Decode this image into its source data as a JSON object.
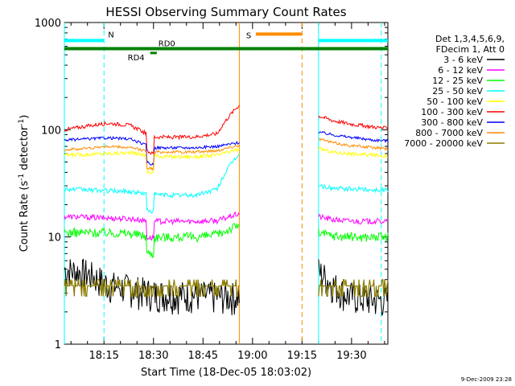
{
  "chart_data": {
    "type": "line",
    "title": "HESSI Observing Summary Count Rates",
    "xlabel": "Start Time (18-Dec-05 18:03:02)",
    "ylabel_main": "Count Rate (s",
    "ylabel_sup1": "-1",
    "ylabel_mid": " detector",
    "ylabel_sup2": "-1",
    "ylabel_end": ")",
    "yscale": "log",
    "ylim": [
      1,
      1000
    ],
    "xlim_min": [
      0,
      98
    ],
    "yticks": [
      {
        "value": 1,
        "label": "1"
      },
      {
        "value": 10,
        "label": "10"
      },
      {
        "value": 100,
        "label": "100"
      },
      {
        "value": 1000,
        "label": "1000"
      }
    ],
    "xticks": [
      {
        "min": 12,
        "label": "18:15"
      },
      {
        "min": 27,
        "label": "18:30"
      },
      {
        "min": 42,
        "label": "18:45"
      },
      {
        "min": 57,
        "label": "19:00"
      },
      {
        "min": 72,
        "label": "19:15"
      },
      {
        "min": 87,
        "label": "19:30"
      }
    ],
    "legend": {
      "header": [
        "Det 1,3,4,5,6,9,",
        "FDecim 1, Att 0"
      ],
      "placement": "right"
    },
    "segments": [
      [
        0,
        53
      ],
      [
        77,
        98
      ]
    ],
    "series": [
      {
        "name": "3 - 6 keV",
        "color": "#000000",
        "pre": [
          5.0,
          4.6,
          3.6,
          3.3,
          3.0,
          2.9,
          2.9,
          2.8,
          2.8
        ],
        "post": [
          4.8,
          3.6,
          2.9,
          2.7,
          2.6,
          2.6
        ]
      },
      {
        "name": "6 - 12 keV",
        "color": "#ff00ff",
        "pre": [
          15.5,
          15.3,
          15.0,
          14.8,
          14.0,
          14.0,
          14.0,
          14.2,
          16.5
        ],
        "post": [
          15.5,
          14.5,
          14.2,
          14.0,
          14.0,
          14.0
        ]
      },
      {
        "name": "12 - 25 keV",
        "color": "#00ff00",
        "pre": [
          11.0,
          11.0,
          11.0,
          10.8,
          10.0,
          10.0,
          10.0,
          10.5,
          13.0
        ],
        "post": [
          11.0,
          10.3,
          10.1,
          10.0,
          10.0,
          10.0
        ]
      },
      {
        "name": "25 - 50 keV",
        "color": "#00ffff",
        "pre": [
          28.0,
          27.5,
          27.0,
          26.5,
          25.0,
          24.5,
          24.5,
          28.0,
          60.0
        ],
        "post": [
          30.0,
          28.5,
          28.0,
          28.0,
          27.5,
          27.5
        ]
      },
      {
        "name": "50 - 100 keV",
        "color": "#ffff00",
        "pre": [
          58.0,
          59.0,
          60.0,
          61.0,
          57.0,
          56.0,
          56.0,
          58.0,
          66.0
        ],
        "post": [
          67.0,
          62.0,
          60.0,
          59.0,
          58.0,
          57.0
        ]
      },
      {
        "name": "100 - 300 keV",
        "color": "#ff0000",
        "pre": [
          100.0,
          108.0,
          115.0,
          110.0,
          86.0,
          85.0,
          86.0,
          92.0,
          170.0
        ],
        "post": [
          135.0,
          122.0,
          115.0,
          110.0,
          106.0,
          103.0
        ]
      },
      {
        "name": "300 - 800 keV",
        "color": "#0000ff",
        "pre": [
          80.0,
          82.0,
          84.0,
          82.0,
          68.0,
          68.0,
          68.0,
          70.0,
          76.0
        ],
        "post": [
          95.0,
          90.0,
          86.0,
          83.0,
          80.0,
          79.0
        ]
      },
      {
        "name": "800 - 7000 keV",
        "color": "#ff8c00",
        "pre": [
          65.0,
          67.0,
          70.0,
          68.0,
          62.0,
          62.0,
          62.0,
          64.0,
          72.0
        ],
        "post": [
          82.0,
          76.0,
          72.0,
          70.0,
          68.0,
          66.0
        ]
      },
      {
        "name": "7000 - 20000 keV",
        "color": "#8b7d00",
        "pre": [
          3.5,
          3.5,
          3.5,
          3.5,
          3.5,
          3.5,
          3.5,
          3.5,
          3.5
        ],
        "post": [
          3.5,
          3.5,
          3.5,
          3.5,
          3.5,
          3.5
        ]
      }
    ],
    "flags": [
      {
        "label": "N",
        "color": "#00ffff",
        "y_value": 680,
        "segments": [
          [
            0,
            12
          ],
          [
            77,
            98
          ]
        ]
      },
      {
        "label": "S",
        "color": "#ff8c00",
        "y_value": 780,
        "segments": [
          [
            58,
            72
          ]
        ]
      },
      {
        "label": "RD0",
        "color": "#008000",
        "y_value": 570,
        "segments": [
          [
            0,
            98
          ]
        ]
      },
      {
        "label": "RD4",
        "color": "#008000",
        "y_value": 520,
        "segments": [
          [
            26,
            28
          ]
        ]
      }
    ],
    "vlines": [
      {
        "min": 0,
        "color": "#00ffff",
        "style": "solid"
      },
      {
        "min": 12,
        "color": "#00ffff",
        "style": "dashed"
      },
      {
        "min": 53,
        "color": "#ff8c00",
        "style": "solid"
      },
      {
        "min": 72,
        "color": "#ff8c00",
        "style": "dashed"
      },
      {
        "min": 77,
        "color": "#00ffff",
        "style": "solid"
      },
      {
        "min": 96,
        "color": "#00ffff",
        "style": "dashed"
      }
    ]
  },
  "footer_timestamp": "9-Dec-2009 23:28"
}
